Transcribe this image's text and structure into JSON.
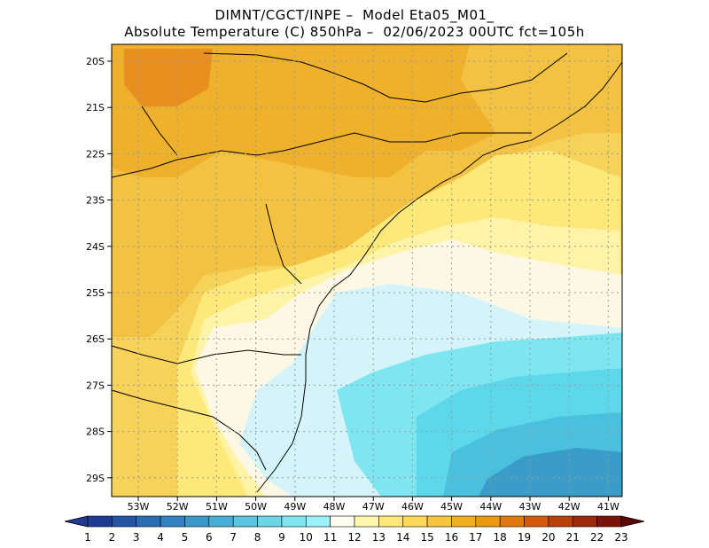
{
  "title_line1": "DIMNT/CGCT/INPE –  Model Eta05_M01_",
  "title_line2": "Absolute Temperature (C) 850hPa –  02/06/2023 00UTC fct=105h",
  "lat_labels": [
    "20S",
    "21S",
    "22S",
    "23S",
    "24S",
    "25S",
    "26S",
    "27S",
    "28S",
    "29S"
  ],
  "lon_labels": [
    "53W",
    "52W",
    "51W",
    "50W",
    "49W",
    "48W",
    "47W",
    "46W",
    "45W",
    "44W",
    "43W",
    "42W",
    "41W"
  ],
  "colorbar": {
    "labels": [
      "1",
      "2",
      "3",
      "4",
      "5",
      "6",
      "7",
      "8",
      "9",
      "10",
      "11",
      "12",
      "13",
      "14",
      "15",
      "16",
      "17",
      "18",
      "19",
      "20",
      "21",
      "22",
      "23"
    ],
    "colors": [
      "#1f3a93",
      "#2456a6",
      "#2b6cb5",
      "#3382bf",
      "#3c98c8",
      "#48aed4",
      "#5bc4de",
      "#6cd6e8",
      "#7ee6f0",
      "#9cf2f8",
      "#fffdf0",
      "#fff6b0",
      "#ffe87a",
      "#ffd85a",
      "#f6c540",
      "#f0b020",
      "#eb9a10",
      "#e07a10",
      "#d25a0a",
      "#b8400a",
      "#9a2a0a",
      "#7a140a",
      "#5a0808"
    ]
  },
  "field_colors": {
    "t10": "#d4f4fa",
    "t11": "#fdf8e6",
    "t12": "#fff3a8",
    "t13": "#fde87a",
    "t14": "#f6d258",
    "t15": "#f3c242",
    "t16": "#efb02c",
    "t17": "#e98f20",
    "t9": "#7ee6f0",
    "t8": "#5cd8ea",
    "t7": "#48c0de",
    "t6": "#3a9cc8",
    "t5": "#3484bc"
  }
}
